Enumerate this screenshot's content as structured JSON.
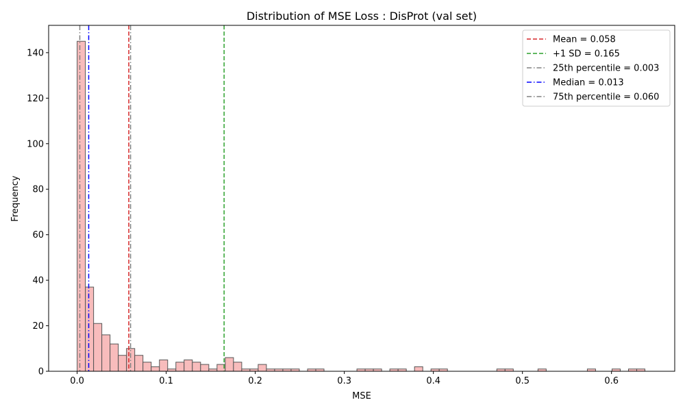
{
  "chart_data": {
    "type": "bar",
    "title": "Distribution of MSE Loss : DisProt (val set)",
    "xlabel": "MSE",
    "ylabel": "Frequency",
    "xlim": [
      -0.032,
      0.671
    ],
    "ylim": [
      0,
      152
    ],
    "xticks": [
      0.0,
      0.1,
      0.2,
      0.3,
      0.4,
      0.5,
      0.6
    ],
    "xtick_labels": [
      "0.0",
      "0.1",
      "0.2",
      "0.3",
      "0.4",
      "0.5",
      "0.6"
    ],
    "yticks": [
      0,
      20,
      40,
      60,
      80,
      100,
      120,
      140
    ],
    "ytick_labels": [
      "0",
      "20",
      "40",
      "60",
      "80",
      "100",
      "120",
      "140"
    ],
    "grid": false,
    "legend_position": "top-right",
    "bin_start": 0.0,
    "bin_width": 0.00924,
    "counts": [
      145,
      37,
      21,
      16,
      12,
      7,
      10,
      7,
      4,
      2,
      5,
      1,
      4,
      5,
      4,
      3,
      1,
      3,
      6,
      4,
      1,
      1,
      3,
      1,
      1,
      1,
      1,
      0,
      1,
      1,
      0,
      0,
      0,
      0,
      1,
      1,
      1,
      0,
      1,
      1,
      0,
      2,
      0,
      1,
      1,
      0,
      0,
      0,
      0,
      0,
      0,
      1,
      1,
      0,
      0,
      0,
      1,
      0,
      0,
      0,
      0,
      0,
      1,
      0,
      0,
      1,
      0,
      1,
      1
    ],
    "bar_fill": "#f8bcbc",
    "bar_edge": "#555555",
    "reference_lines": [
      {
        "label": "Mean = 0.058",
        "x": 0.058,
        "color": "#d62728",
        "dash": "dashed"
      },
      {
        "label": "+1 SD = 0.165",
        "x": 0.165,
        "color": "#2ca02c",
        "dash": "dashed"
      },
      {
        "label": "25th percentile = 0.003",
        "x": 0.003,
        "color": "#808080",
        "dash": "dashdot"
      },
      {
        "label": "Median = 0.013",
        "x": 0.013,
        "color": "#0000ff",
        "dash": "dashdot"
      },
      {
        "label": "75th percentile = 0.060",
        "x": 0.06,
        "color": "#808080",
        "dash": "dashdot"
      }
    ]
  }
}
